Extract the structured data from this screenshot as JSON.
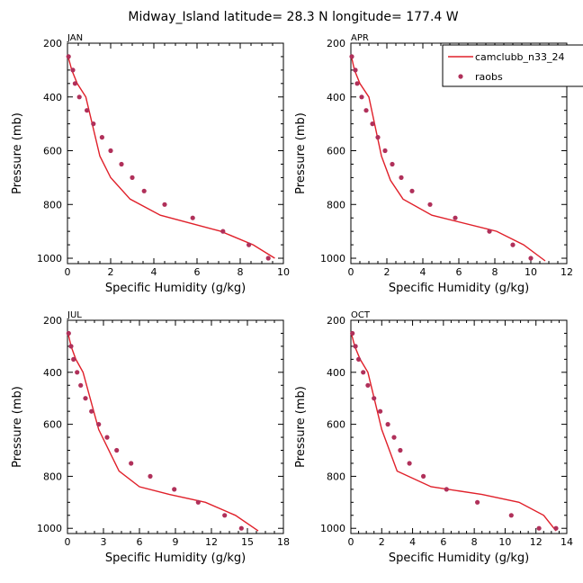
{
  "figure": {
    "title": "Midway_Island   latitude= 28.3 N longitude= 177.4 W"
  },
  "legend": {
    "model_label": "camclubb_n33_24",
    "obs_label": "raobs",
    "model_color": "#e0202a",
    "obs_color": "#b0305a"
  },
  "chart_data": [
    {
      "type": "line",
      "panel": "JAN",
      "title": "JAN",
      "xlabel": "Specific Humidity (g/kg)",
      "ylabel": "Pressure (mb)",
      "xlim": [
        0,
        10
      ],
      "xticks": [
        0,
        2,
        4,
        6,
        8,
        10
      ],
      "ylim": [
        1020,
        200
      ],
      "yticks": [
        200,
        400,
        600,
        800,
        1000
      ],
      "model": {
        "name": "camclubb_n33_24",
        "x": [
          0.03,
          0.2,
          0.45,
          0.85,
          1.5,
          2.0,
          2.9,
          4.3,
          7.1,
          8.6,
          9.6
        ],
        "y": [
          250,
          300,
          350,
          400,
          620,
          700,
          780,
          840,
          900,
          950,
          1000
        ]
      },
      "obs": {
        "name": "raobs",
        "x": [
          0.05,
          0.25,
          0.35,
          0.55,
          0.9,
          1.2,
          1.6,
          2.0,
          2.5,
          3.0,
          3.55,
          4.5,
          5.8,
          7.2,
          8.4,
          9.3
        ],
        "y": [
          250,
          300,
          350,
          400,
          450,
          500,
          550,
          600,
          650,
          700,
          750,
          800,
          850,
          900,
          950,
          1000
        ]
      }
    },
    {
      "type": "line",
      "panel": "APR",
      "title": "APR",
      "xlabel": "Specific Humidity (g/kg)",
      "ylabel": "Pressure (mb)",
      "xlim": [
        0,
        12
      ],
      "xticks": [
        0,
        2,
        4,
        6,
        8,
        10,
        12
      ],
      "ylim": [
        1020,
        200
      ],
      "yticks": [
        200,
        400,
        600,
        800,
        1000
      ],
      "model": {
        "name": "camclubb_n33_24",
        "x": [
          0.03,
          0.2,
          0.5,
          1.0,
          1.7,
          2.2,
          2.9,
          4.5,
          8.1,
          9.6,
          10.8
        ],
        "y": [
          250,
          300,
          350,
          400,
          620,
          710,
          780,
          840,
          900,
          950,
          1010
        ]
      },
      "obs": {
        "name": "raobs",
        "x": [
          0.05,
          0.25,
          0.35,
          0.6,
          0.85,
          1.2,
          1.5,
          1.9,
          2.3,
          2.8,
          3.4,
          4.4,
          5.8,
          7.7,
          9.0,
          10.0
        ],
        "y": [
          250,
          300,
          350,
          400,
          450,
          500,
          550,
          600,
          650,
          700,
          750,
          800,
          850,
          900,
          950,
          1000
        ]
      }
    },
    {
      "type": "line",
      "panel": "JUL",
      "title": "JUL",
      "xlabel": "Specific Humidity (g/kg)",
      "ylabel": "Pressure (mb)",
      "xlim": [
        0,
        18
      ],
      "xticks": [
        0,
        3,
        6,
        9,
        12,
        15,
        18
      ],
      "ylim": [
        1020,
        200
      ],
      "yticks": [
        200,
        400,
        600,
        800,
        1000
      ],
      "model": {
        "name": "camclubb_n33_24",
        "x": [
          0.05,
          0.3,
          0.7,
          1.3,
          2.6,
          4.3,
          6.0,
          8.5,
          11.5,
          14.0,
          15.9
        ],
        "y": [
          250,
          300,
          350,
          400,
          620,
          780,
          840,
          870,
          900,
          950,
          1010
        ]
      },
      "obs": {
        "name": "raobs",
        "x": [
          0.1,
          0.3,
          0.5,
          0.8,
          1.1,
          1.5,
          2.0,
          2.6,
          3.3,
          4.1,
          5.3,
          6.9,
          8.9,
          10.9,
          13.1,
          14.5
        ],
        "y": [
          250,
          300,
          350,
          400,
          450,
          500,
          550,
          600,
          650,
          700,
          750,
          800,
          850,
          900,
          950,
          1000
        ]
      }
    },
    {
      "type": "line",
      "panel": "OCT",
      "title": "OCT",
      "xlabel": "Specific Humidity (g/kg)",
      "ylabel": "Pressure (mb)",
      "xlim": [
        0,
        14
      ],
      "xticks": [
        0,
        2,
        4,
        6,
        8,
        10,
        12,
        14
      ],
      "ylim": [
        1020,
        200
      ],
      "yticks": [
        200,
        400,
        600,
        800,
        1000
      ],
      "model": {
        "name": "camclubb_n33_24",
        "x": [
          0.03,
          0.25,
          0.6,
          1.1,
          2.0,
          3.0,
          5.2,
          8.5,
          10.9,
          12.5,
          13.3
        ],
        "y": [
          250,
          300,
          350,
          400,
          620,
          780,
          840,
          870,
          900,
          950,
          1010
        ]
      },
      "obs": {
        "name": "raobs",
        "x": [
          0.1,
          0.3,
          0.5,
          0.8,
          1.1,
          1.5,
          1.9,
          2.4,
          2.8,
          3.2,
          3.8,
          4.7,
          6.2,
          8.2,
          10.4,
          12.2,
          13.3
        ],
        "y": [
          250,
          300,
          350,
          400,
          450,
          500,
          550,
          600,
          650,
          700,
          750,
          800,
          850,
          900,
          950,
          1000,
          1000
        ]
      }
    }
  ]
}
